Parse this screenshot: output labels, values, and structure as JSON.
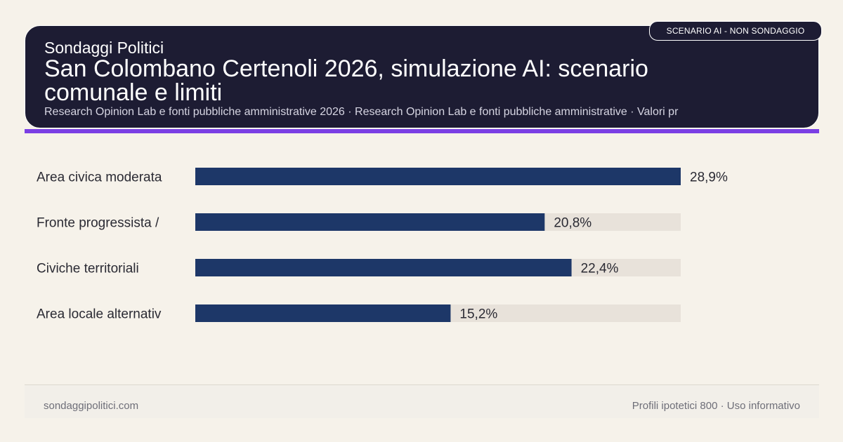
{
  "header": {
    "brand": "Sondaggi Politici",
    "title": "San Colombano Certenoli 2026, simulazione AI: scenario comunale e limiti",
    "subtitle": "Research Opinion Lab e fonti pubbliche amministrative 2026 · Research Opinion Lab e fonti pubbliche amministrative · Valori pr",
    "badge": "SCENARIO AI - NON SONDAGGIO"
  },
  "colors": {
    "bar": "#1d3768",
    "track": "#e8e2da",
    "header_bg": "#1d1c33",
    "accent": "#7b3fe4"
  },
  "chart_data": {
    "type": "bar",
    "orientation": "horizontal",
    "categories": [
      "Area civica moderata",
      "Fronte progressista /",
      "Civiche territoriali",
      "Area locale alternativ"
    ],
    "values": [
      28.9,
      20.8,
      22.4,
      15.2
    ],
    "value_labels": [
      "28,9%",
      "20,8%",
      "22,4%",
      "15,2%"
    ],
    "xlim": [
      0,
      28.9
    ],
    "grid": false
  },
  "footer": {
    "left": "sondaggipolitici.com",
    "right": "Profili ipotetici 800 · Uso informativo"
  }
}
